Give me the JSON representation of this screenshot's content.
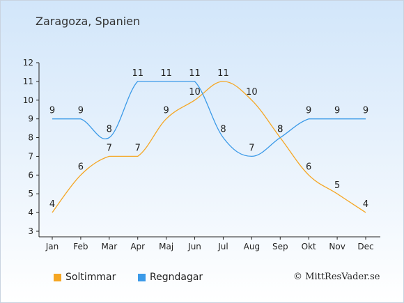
{
  "page": {
    "title": "Zaragoza, Spanien"
  },
  "chart_data": {
    "type": "line",
    "title": "Zaragoza, Spanien",
    "categories": [
      "Jan",
      "Feb",
      "Mar",
      "Apr",
      "Maj",
      "Jun",
      "Jul",
      "Aug",
      "Sep",
      "Okt",
      "Nov",
      "Dec"
    ],
    "ylim": [
      3,
      12
    ],
    "yticks": [
      "3",
      "4",
      "5",
      "6",
      "7",
      "8",
      "9",
      "10",
      "11",
      "12"
    ],
    "grid": false,
    "legend_position": "bottom-left",
    "series": [
      {
        "name": "Soltimmar",
        "color": "#f5a623",
        "values": [
          4,
          6,
          7,
          7,
          9,
          10,
          11,
          10,
          8,
          6,
          5,
          4
        ]
      },
      {
        "name": "Regndagar",
        "color": "#3b9ae8",
        "values": [
          9,
          9,
          8,
          11,
          11,
          11,
          8,
          7,
          8,
          9,
          9,
          9
        ]
      }
    ]
  },
  "legend": [
    {
      "label": "Soltimmar",
      "color": "#f5a623"
    },
    {
      "label": "Regndagar",
      "color": "#3b9ae8"
    }
  ],
  "footer": {
    "copyright": "© MittResVader.se"
  }
}
